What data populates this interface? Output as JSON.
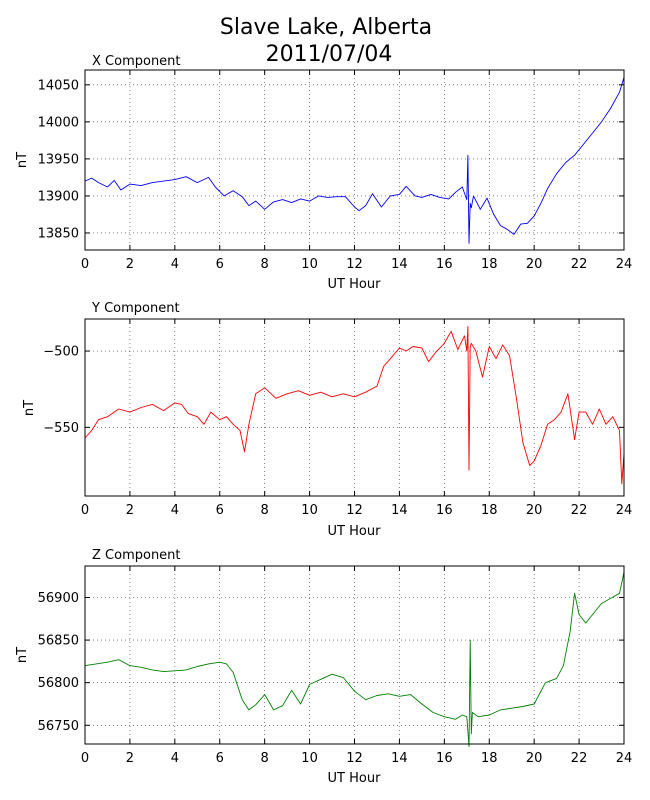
{
  "figure": {
    "title_line1": "Slave Lake, Alberta",
    "title_line2": "2011/07/04"
  },
  "chart_data": [
    {
      "type": "line",
      "title": "X Component",
      "xlabel": "UT Hour",
      "ylabel": "nT",
      "xlim": [
        0,
        24
      ],
      "ylim": [
        13827,
        14070
      ],
      "xticks": [
        0,
        2,
        4,
        6,
        8,
        10,
        12,
        14,
        16,
        18,
        20,
        22,
        24
      ],
      "yticks": [
        13850,
        13900,
        13950,
        14000,
        14050
      ],
      "grid": true,
      "color": "#0000ff",
      "series": [
        {
          "x": [
            0,
            0.3,
            0.6,
            1.0,
            1.3,
            1.6,
            2.0,
            2.5,
            3.0,
            3.5,
            4.0,
            4.5,
            5.0,
            5.5,
            5.8,
            6.2,
            6.6,
            7.0,
            7.3,
            7.6,
            8.0,
            8.4,
            8.8,
            9.2,
            9.6,
            10.0,
            10.4,
            10.8,
            11.2,
            11.6,
            12.0,
            12.2,
            12.5,
            12.8,
            13.2,
            13.6,
            14.0,
            14.3,
            14.7,
            15.0,
            15.4,
            15.8,
            16.2,
            16.5,
            16.8,
            17.0,
            17.05,
            17.1,
            17.15,
            17.2,
            17.3,
            17.6,
            17.9,
            18.2,
            18.5,
            18.8,
            19.1,
            19.4,
            19.7,
            20.0,
            20.3,
            20.6,
            21.0,
            21.4,
            21.8,
            22.2,
            22.6,
            23.0,
            23.4,
            23.8,
            24.0
          ],
          "y": [
            13920,
            13924,
            13918,
            13912,
            13921,
            13908,
            13916,
            13914,
            13918,
            13920,
            13922,
            13926,
            13918,
            13925,
            13912,
            13900,
            13907,
            13899,
            13887,
            13893,
            13882,
            13892,
            13895,
            13891,
            13896,
            13893,
            13900,
            13898,
            13899,
            13899,
            13885,
            13880,
            13887,
            13903,
            13885,
            13900,
            13902,
            13913,
            13900,
            13898,
            13902,
            13898,
            13896,
            13905,
            13912,
            13895,
            13955,
            13836,
            13890,
            13884,
            13900,
            13882,
            13897,
            13875,
            13860,
            13855,
            13848,
            13862,
            13863,
            13873,
            13890,
            13910,
            13930,
            13945,
            13955,
            13970,
            13985,
            14000,
            14018,
            14040,
            14060
          ]
        }
      ]
    },
    {
      "type": "line",
      "title": "Y Component",
      "xlabel": "UT Hour",
      "ylabel": "nT",
      "xlim": [
        0,
        24
      ],
      "ylim": [
        -595,
        -479
      ],
      "xticks": [
        0,
        2,
        4,
        6,
        8,
        10,
        12,
        14,
        16,
        18,
        20,
        22,
        24
      ],
      "yticks": [
        -500,
        -550
      ],
      "grid": true,
      "color": "#ff0000",
      "series": [
        {
          "x": [
            0,
            0.3,
            0.6,
            1.0,
            1.5,
            2.0,
            2.5,
            3.0,
            3.5,
            4.0,
            4.3,
            4.6,
            5.0,
            5.3,
            5.6,
            6.0,
            6.3,
            6.6,
            6.9,
            7.1,
            7.3,
            7.6,
            8.0,
            8.5,
            9.0,
            9.5,
            10.0,
            10.5,
            11.0,
            11.5,
            12.0,
            12.5,
            13.0,
            13.3,
            13.6,
            14.0,
            14.3,
            14.6,
            15.0,
            15.3,
            15.6,
            16.0,
            16.3,
            16.6,
            16.9,
            17.0,
            17.05,
            17.1,
            17.15,
            17.2,
            17.4,
            17.7,
            18.0,
            18.3,
            18.6,
            18.9,
            19.2,
            19.5,
            19.8,
            20.0,
            20.3,
            20.6,
            20.9,
            21.2,
            21.5,
            21.8,
            22.0,
            22.3,
            22.6,
            22.9,
            23.2,
            23.5,
            23.8,
            23.9,
            24.0
          ],
          "y": [
            -557,
            -552,
            -545,
            -543,
            -538,
            -540,
            -537,
            -535,
            -539,
            -534,
            -535,
            -541,
            -543,
            -548,
            -540,
            -545,
            -543,
            -548,
            -552,
            -566,
            -548,
            -528,
            -524,
            -531,
            -528,
            -526,
            -529,
            -527,
            -530,
            -528,
            -530,
            -527,
            -523,
            -510,
            -505,
            -498,
            -500,
            -497,
            -498,
            -507,
            -501,
            -495,
            -487,
            -499,
            -490,
            -500,
            -484,
            -578,
            -497,
            -495,
            -500,
            -517,
            -497,
            -505,
            -496,
            -503,
            -530,
            -560,
            -575,
            -572,
            -562,
            -548,
            -545,
            -540,
            -528,
            -558,
            -540,
            -540,
            -548,
            -538,
            -548,
            -543,
            -552,
            -587,
            -567
          ]
        }
      ]
    },
    {
      "type": "line",
      "title": "Z Component",
      "xlabel": "UT Hour",
      "ylabel": "nT",
      "xlim": [
        0,
        24
      ],
      "ylim": [
        56728,
        56937
      ],
      "xticks": [
        0,
        2,
        4,
        6,
        8,
        10,
        12,
        14,
        16,
        18,
        20,
        22,
        24
      ],
      "yticks": [
        56750,
        56800,
        56850,
        56900
      ],
      "grid": true,
      "color": "#008000",
      "series": [
        {
          "x": [
            0,
            0.5,
            1.0,
            1.5,
            2.0,
            2.5,
            3.0,
            3.5,
            4.0,
            4.5,
            5.0,
            5.5,
            6.0,
            6.3,
            6.6,
            7.0,
            7.3,
            7.6,
            8.0,
            8.4,
            8.8,
            9.2,
            9.6,
            10.0,
            10.5,
            11.0,
            11.5,
            12.0,
            12.5,
            13.0,
            13.5,
            14.0,
            14.5,
            15.0,
            15.5,
            16.0,
            16.5,
            16.8,
            17.0,
            17.1,
            17.15,
            17.2,
            17.25,
            17.5,
            18.0,
            18.5,
            19.0,
            19.5,
            20.0,
            20.5,
            21.0,
            21.3,
            21.6,
            21.8,
            22.0,
            22.3,
            22.6,
            23.0,
            23.4,
            23.8,
            24.0
          ],
          "y": [
            56820,
            56822,
            56824,
            56827,
            56820,
            56818,
            56815,
            56813,
            56814,
            56815,
            56819,
            56822,
            56824,
            56822,
            56812,
            56780,
            56768,
            56774,
            56786,
            56768,
            56773,
            56791,
            56775,
            56798,
            56804,
            56810,
            56806,
            56790,
            56780,
            56785,
            56787,
            56784,
            56786,
            56775,
            56765,
            56760,
            56757,
            56762,
            56760,
            56725,
            56850,
            56740,
            56765,
            56760,
            56762,
            56768,
            56770,
            56772,
            56775,
            56800,
            56805,
            56820,
            56860,
            56905,
            56880,
            56870,
            56880,
            56893,
            56899,
            56905,
            56930
          ]
        }
      ]
    }
  ]
}
